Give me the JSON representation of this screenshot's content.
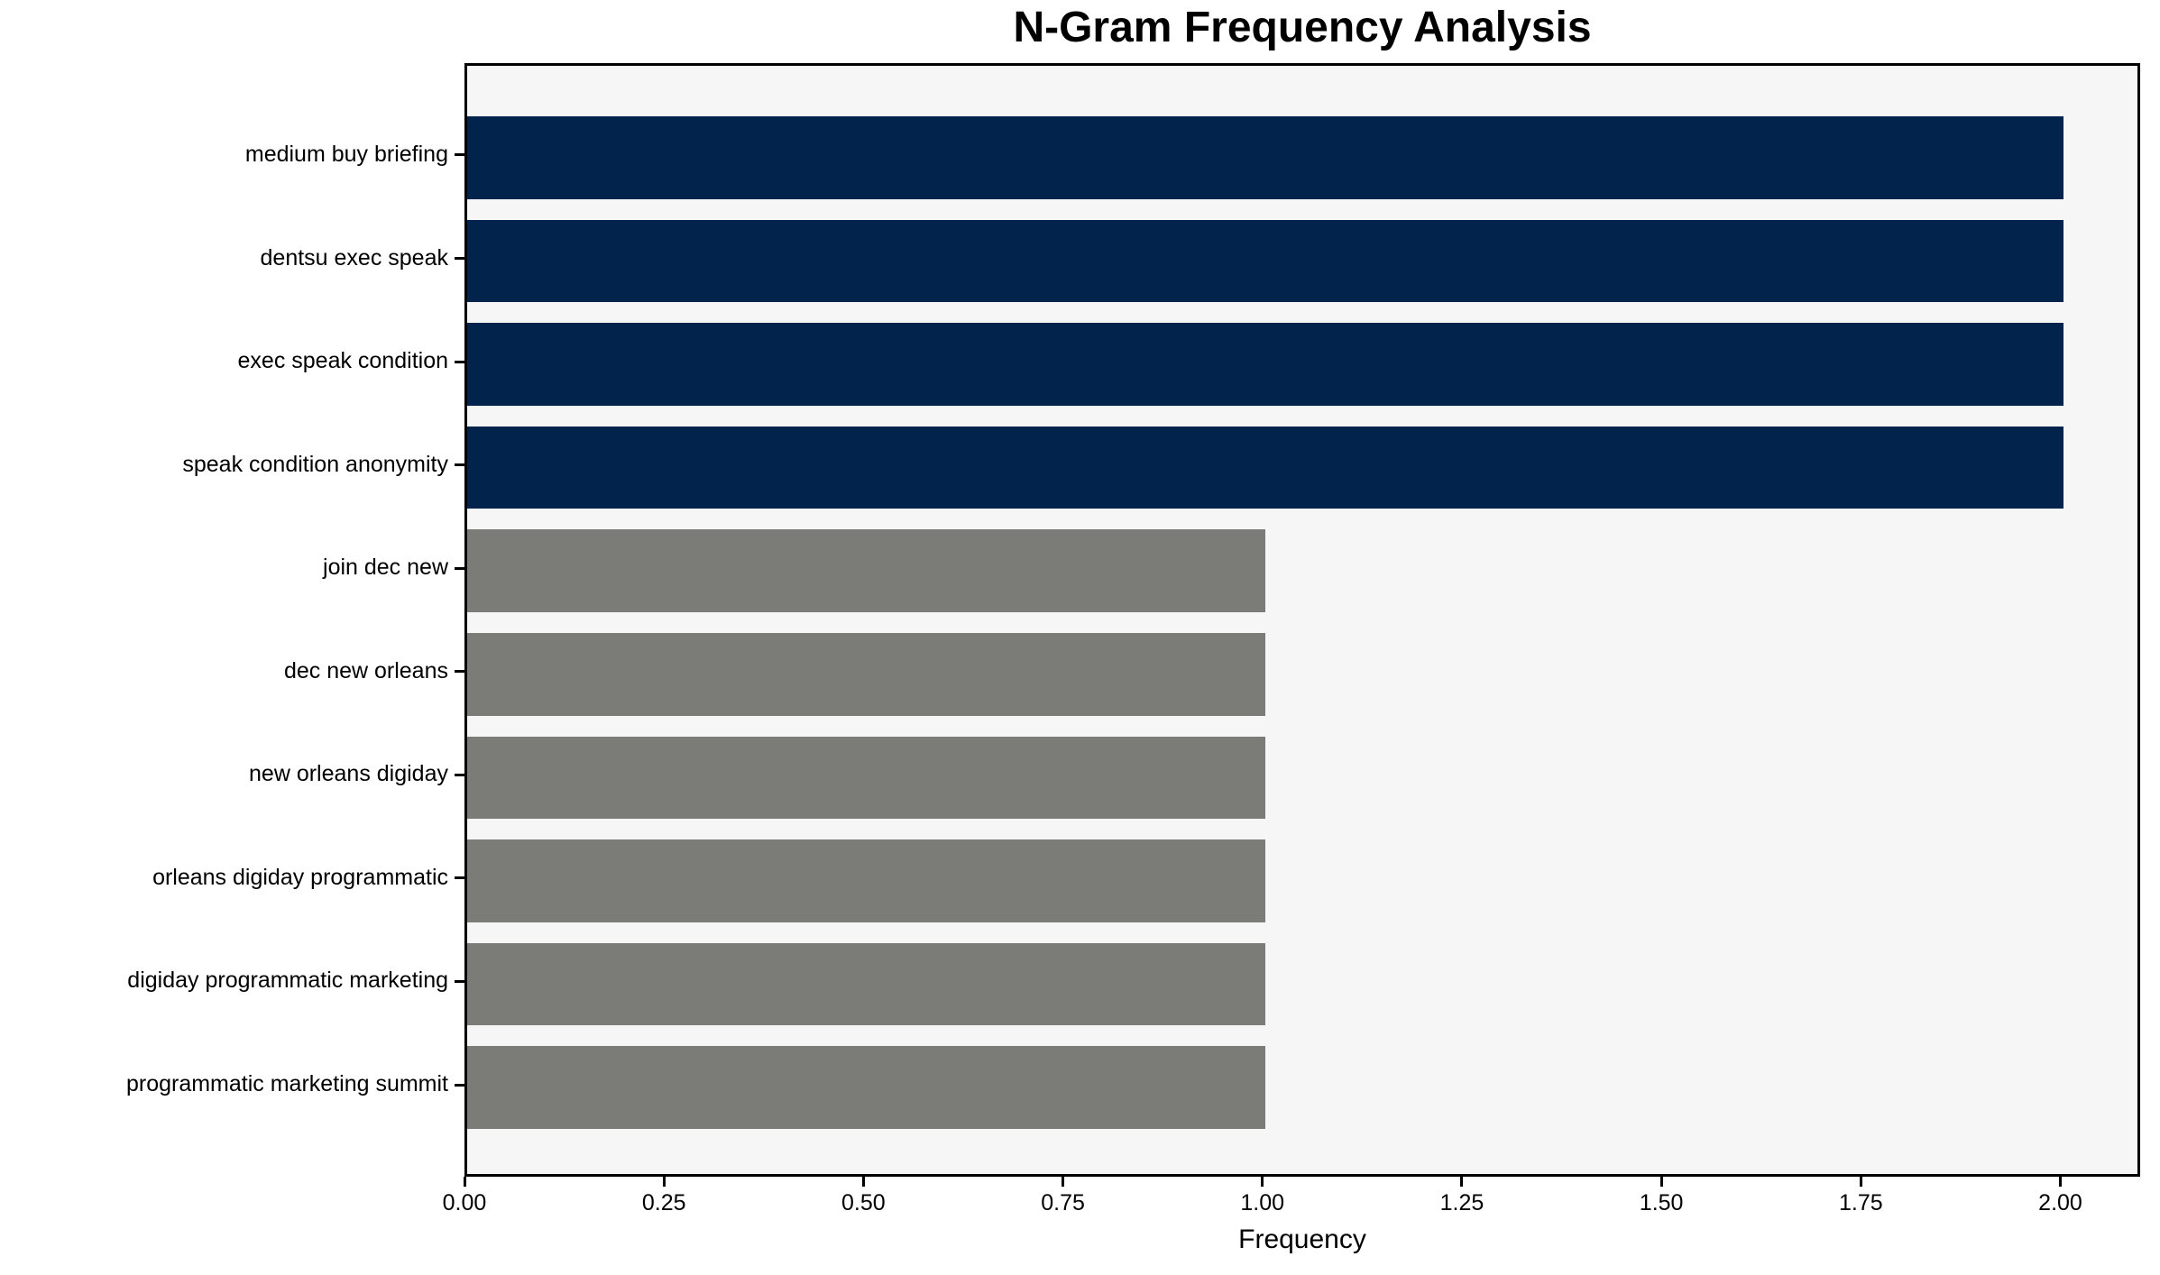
{
  "colors": {
    "navy": "#02234b",
    "gray": "#7b7b78",
    "plot_background": "#f6f6f7",
    "figure_background": "#ffffff",
    "spine": "#000000",
    "text": "#000000"
  },
  "chart_data": {
    "type": "bar",
    "orientation": "horizontal",
    "title": "N-Gram Frequency Analysis",
    "xlabel": "Frequency",
    "ylabel": "",
    "categories": [
      "medium buy briefing",
      "dentsu exec speak",
      "exec speak condition",
      "speak condition anonymity",
      "join dec new",
      "dec new orleans",
      "new orleans digiday",
      "orleans digiday programmatic",
      "digiday programmatic marketing",
      "programmatic marketing summit"
    ],
    "values": [
      2,
      2,
      2,
      2,
      1,
      1,
      1,
      1,
      1,
      1
    ],
    "bar_colors": [
      "#02234b",
      "#02234b",
      "#02234b",
      "#02234b",
      "#7b7b78",
      "#7b7b78",
      "#7b7b78",
      "#7b7b78",
      "#7b7b78",
      "#7b7b78"
    ],
    "xlim": [
      0,
      2.1
    ],
    "x_ticks": [
      {
        "label": "0.00",
        "value": 0.0
      },
      {
        "label": "0.25",
        "value": 0.25
      },
      {
        "label": "0.50",
        "value": 0.5
      },
      {
        "label": "0.75",
        "value": 0.75
      },
      {
        "label": "1.00",
        "value": 1.0
      },
      {
        "label": "1.25",
        "value": 1.25
      },
      {
        "label": "1.50",
        "value": 1.5
      },
      {
        "label": "1.75",
        "value": 1.75
      },
      {
        "label": "2.00",
        "value": 2.0
      }
    ],
    "grid": false,
    "legend": null,
    "bar_relative_height": 0.8,
    "y_margin": 0.49
  }
}
